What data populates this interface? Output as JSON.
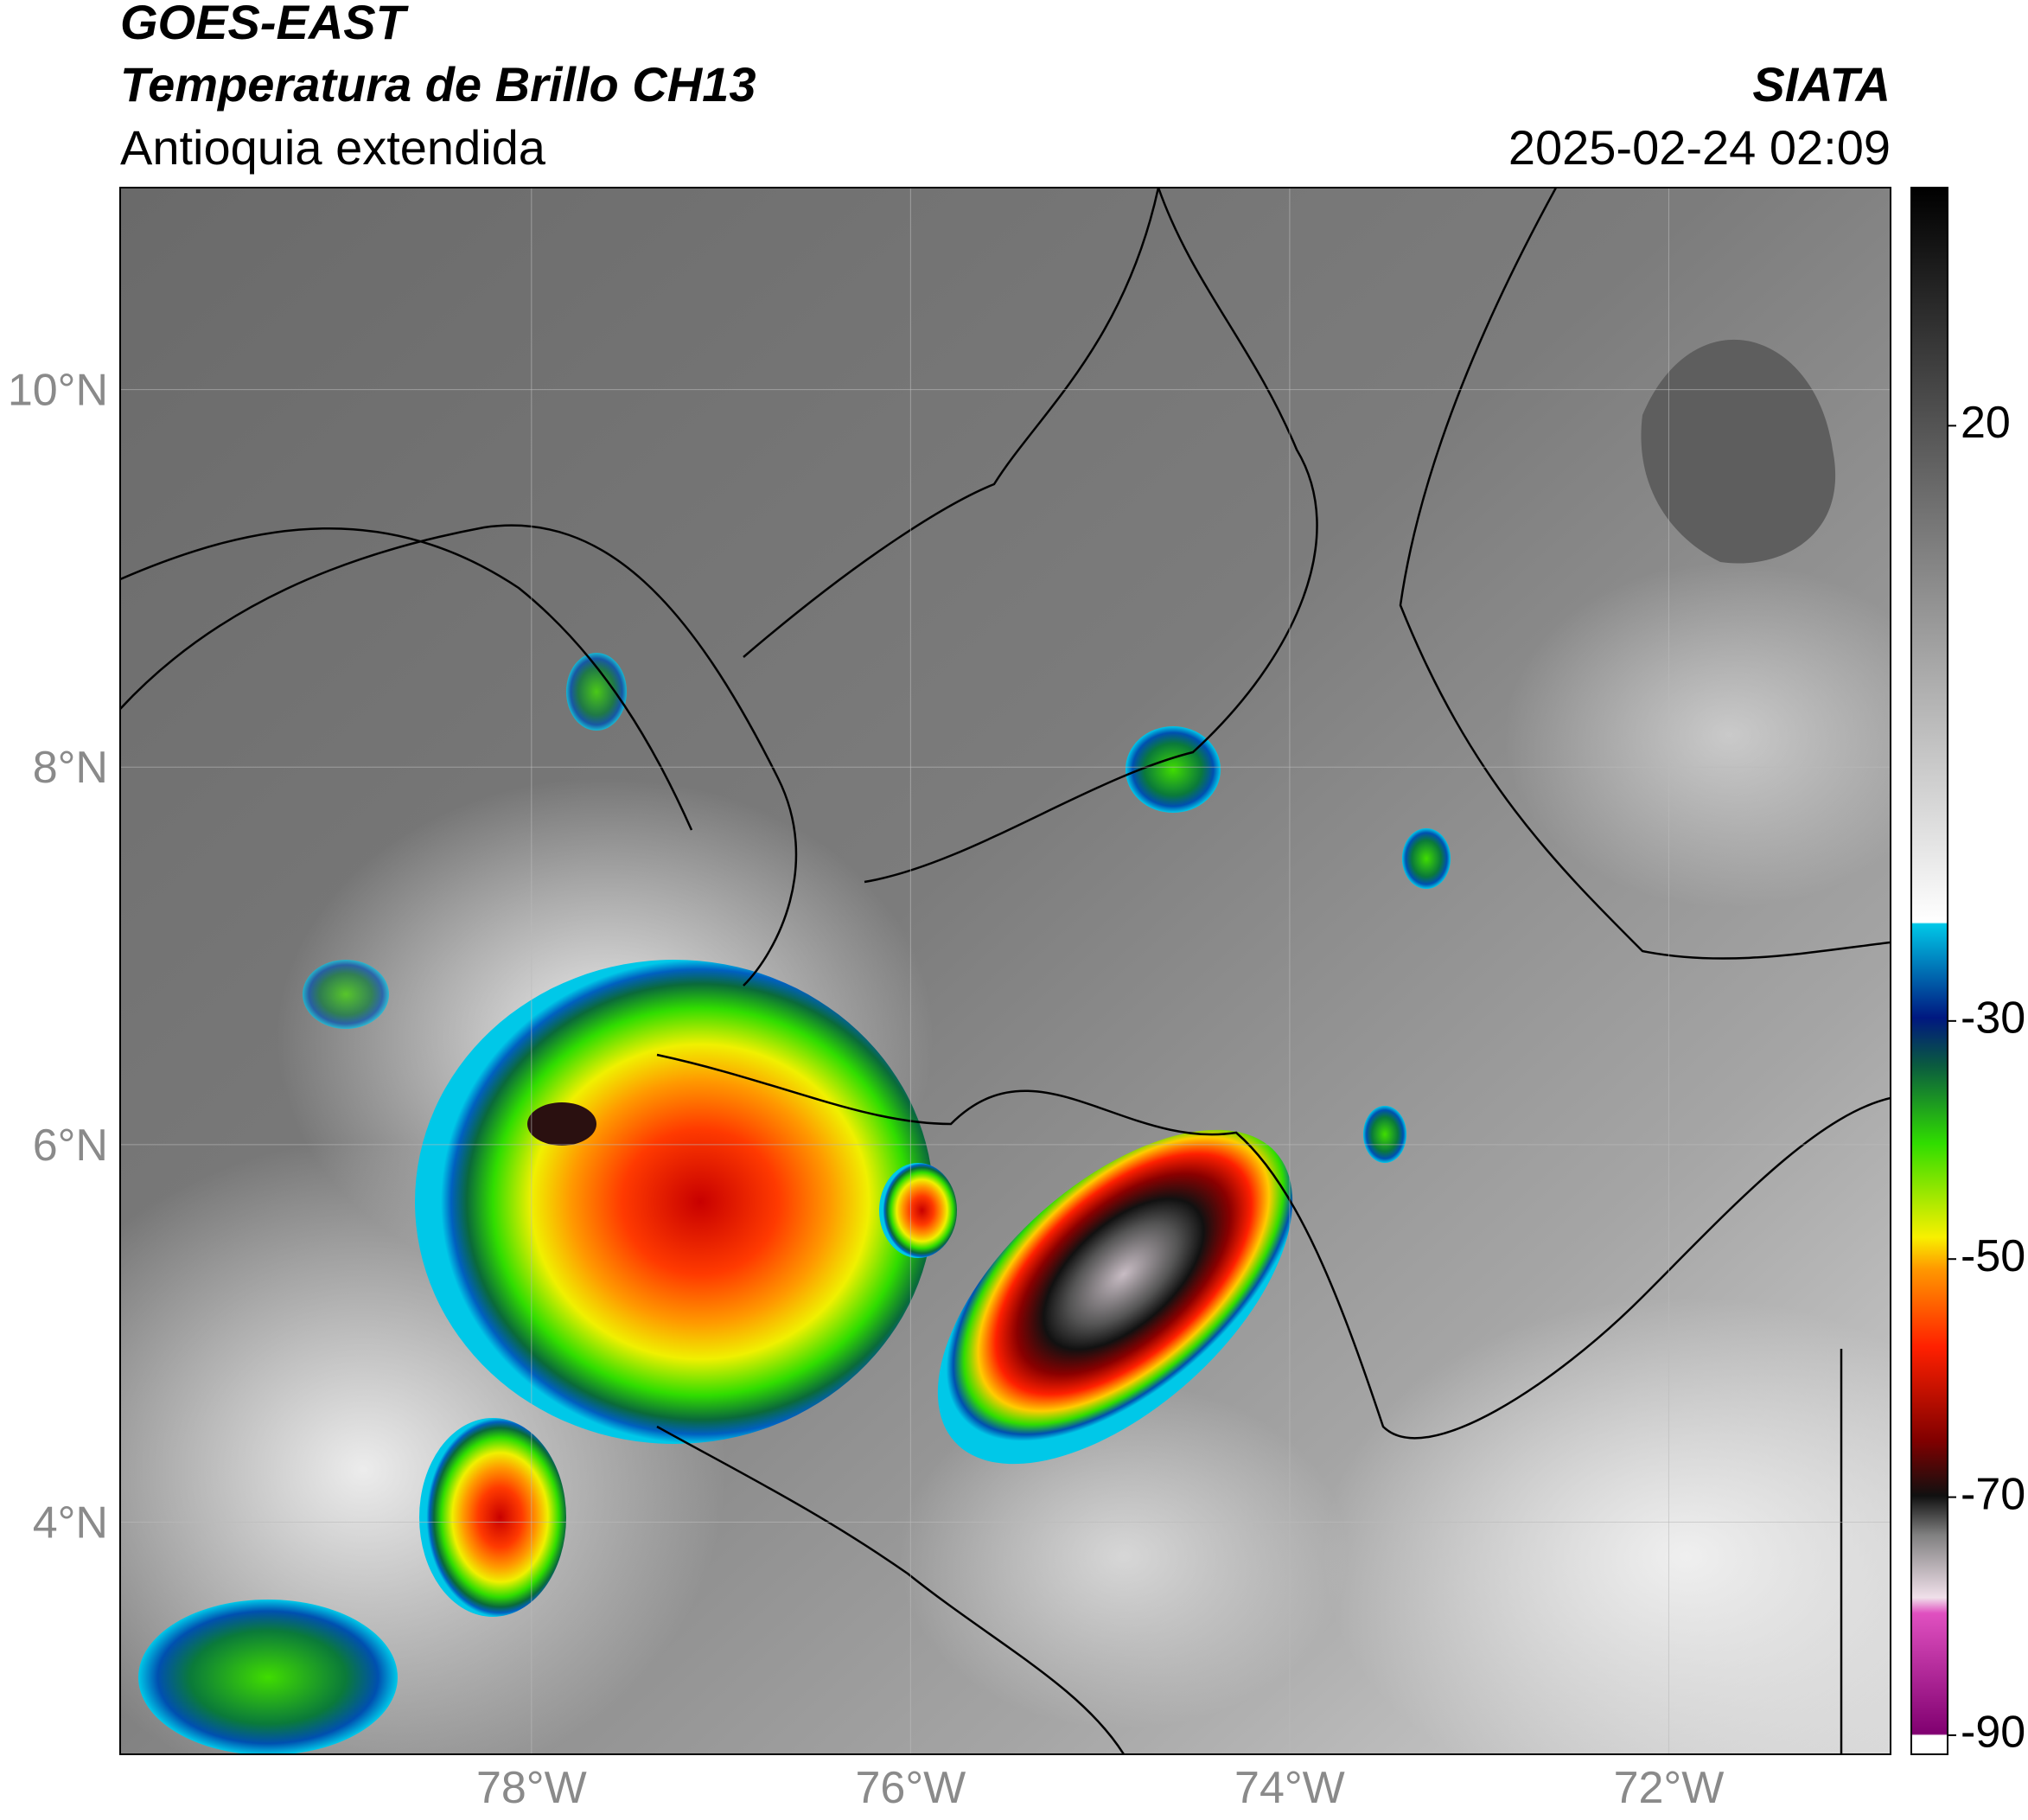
{
  "header": {
    "satellite": "GOES-EAST",
    "product": "Temperatura de Brillo CH13",
    "region": "Antioquia extendida",
    "source": "SIATA",
    "datetime": "2025-02-24 02:09"
  },
  "map": {
    "xlim": [
      -80.17,
      -70.83
    ],
    "ylim": [
      2.77,
      11.07
    ],
    "xticks": [
      {
        "value": -78,
        "label": "78°W"
      },
      {
        "value": -76,
        "label": "76°W"
      },
      {
        "value": -74,
        "label": "74°W"
      },
      {
        "value": -72,
        "label": "72°W"
      }
    ],
    "yticks": [
      {
        "value": 4,
        "label": "4°N"
      },
      {
        "value": 6,
        "label": "6°N"
      },
      {
        "value": 8,
        "label": "8°N"
      },
      {
        "value": 10,
        "label": "10°N"
      }
    ],
    "grid": true
  },
  "colorbar": {
    "lim": [
      -91.6,
      40
    ],
    "ticks": [
      -90,
      -70,
      -50,
      -30,
      20
    ]
  }
}
